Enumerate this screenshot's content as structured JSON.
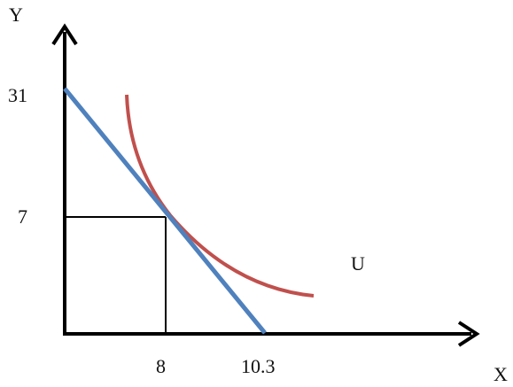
{
  "axes": {
    "y_label": "Y",
    "x_label": "X",
    "y_ticks": [
      "31",
      "7"
    ],
    "x_ticks": [
      "8",
      "10.3"
    ]
  },
  "curve": {
    "label": "U"
  },
  "colors": {
    "axis": "#000000",
    "budget_line": "#4f81bd",
    "indifference_curve": "#c0504d",
    "guide_lines": "#000000"
  }
}
